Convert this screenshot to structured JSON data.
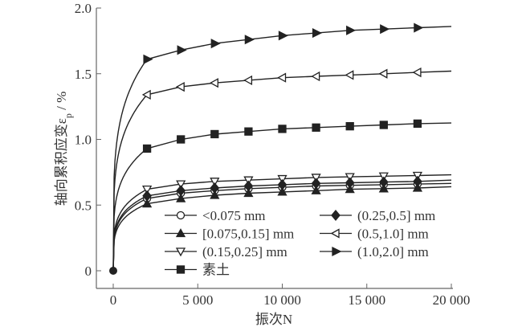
{
  "chart_data": {
    "type": "line",
    "title": "",
    "xlabel": "振次N",
    "ylabel": "轴向累积应变ε",
    "ylabel_sub": "p",
    "ylabel_unit": " / %",
    "xlim": [
      -1000,
      20000
    ],
    "ylim": [
      -0.13,
      2.0
    ],
    "xticks": [
      0,
      5000,
      10000,
      15000,
      20000
    ],
    "xtick_labels": [
      "0",
      "5 000",
      "10 000",
      "15 000",
      "20 000"
    ],
    "yticks": [
      0,
      0.5,
      1.0,
      1.5,
      2.0
    ],
    "ytick_labels": [
      "0",
      "0.5",
      "1.0",
      "1.5",
      "2.0"
    ],
    "grid": false,
    "legend_position": "lower-center",
    "x": [
      2000,
      4000,
      6000,
      8000,
      10000,
      12000,
      14000,
      16000,
      18000
    ],
    "series": [
      {
        "name": "<0.075 mm",
        "marker": "circle-open",
        "values": [
          0.55,
          0.59,
          0.61,
          0.625,
          0.635,
          0.645,
          0.65,
          0.655,
          0.66
        ],
        "end": 0.665
      },
      {
        "name": "[0.075,0.15] mm",
        "marker": "triangle-up-filled",
        "values": [
          0.51,
          0.55,
          0.575,
          0.59,
          0.6,
          0.61,
          0.62,
          0.625,
          0.63
        ],
        "end": 0.64
      },
      {
        "name": "(0.15,0.25] mm",
        "marker": "triangle-down-open",
        "values": [
          0.62,
          0.66,
          0.68,
          0.69,
          0.7,
          0.71,
          0.715,
          0.72,
          0.725
        ],
        "end": 0.73
      },
      {
        "name": "素土",
        "marker": "square-filled",
        "values": [
          0.93,
          1.0,
          1.04,
          1.06,
          1.08,
          1.09,
          1.1,
          1.11,
          1.12
        ],
        "end": 1.125
      },
      {
        "name": "(0.25,0.5] mm",
        "marker": "diamond-filled",
        "values": [
          0.57,
          0.61,
          0.63,
          0.645,
          0.655,
          0.665,
          0.67,
          0.675,
          0.68
        ],
        "end": 0.69
      },
      {
        "name": "(0.5,1.0] mm",
        "marker": "triangle-left-open",
        "values": [
          1.34,
          1.4,
          1.43,
          1.45,
          1.47,
          1.48,
          1.49,
          1.5,
          1.51
        ],
        "end": 1.52
      },
      {
        "name": "(1.0,2.0] mm",
        "marker": "triangle-right-filled",
        "values": [
          1.61,
          1.68,
          1.73,
          1.76,
          1.79,
          1.81,
          1.83,
          1.84,
          1.85
        ],
        "end": 1.86
      }
    ],
    "colors": {
      "line": "#222222",
      "axis": "#666666",
      "text": "#333333"
    }
  }
}
